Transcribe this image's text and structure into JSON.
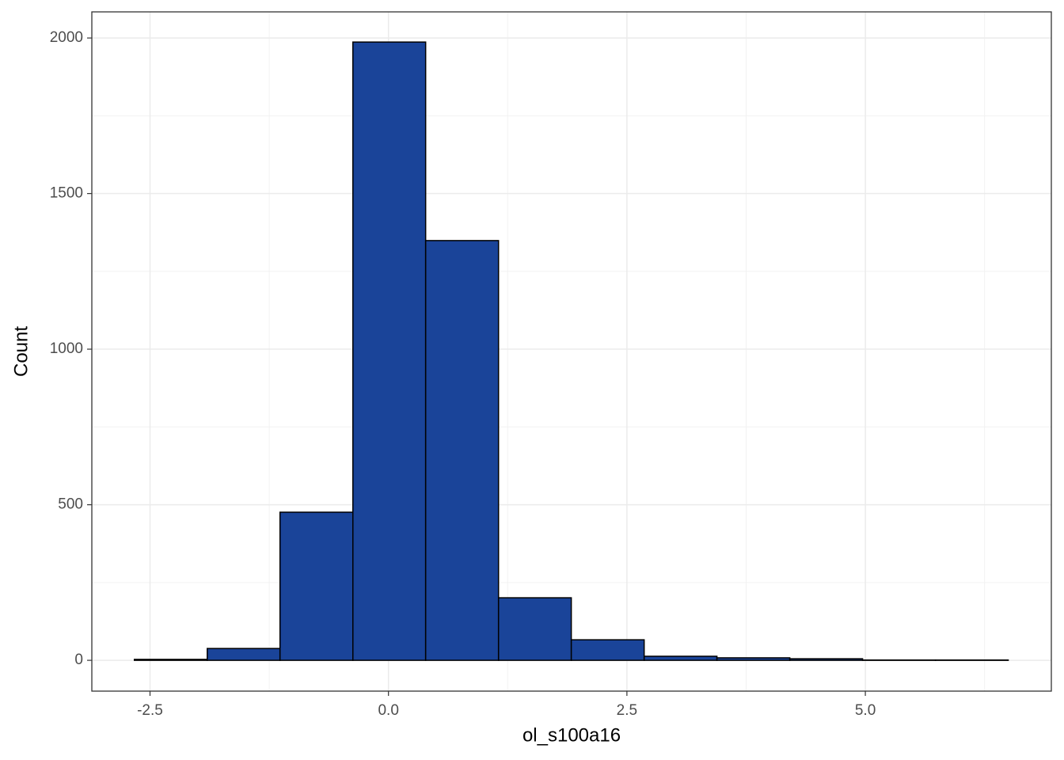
{
  "chart_data": {
    "type": "histogram",
    "x_label": "ol_s100a16",
    "y_label": "Count",
    "bins": [
      -2.664,
      -1.9,
      -1.137,
      -0.373,
      0.39,
      1.154,
      1.917,
      2.681,
      3.444,
      4.208,
      4.971,
      5.735,
      6.498
    ],
    "values": [
      3,
      38,
      476,
      1987,
      1349,
      201,
      66,
      13,
      8,
      5,
      1,
      1
    ],
    "color": "#1a4499",
    "edge_color": "#000000",
    "xlim": [
      -3.11,
      6.95
    ],
    "ylim": [
      -99,
      2084
    ],
    "xticks": [
      -2.5,
      {
        "value": 0,
        "label": "0.0"
      },
      2.5,
      {
        "value": 5,
        "label": "5.0"
      }
    ],
    "yticks": [
      0,
      500,
      1000,
      1500,
      2000
    ],
    "xminor": [
      -1.25,
      1.25,
      3.75,
      6.25
    ],
    "yminor": [
      250,
      750,
      1250,
      1750
    ],
    "grid": true
  }
}
